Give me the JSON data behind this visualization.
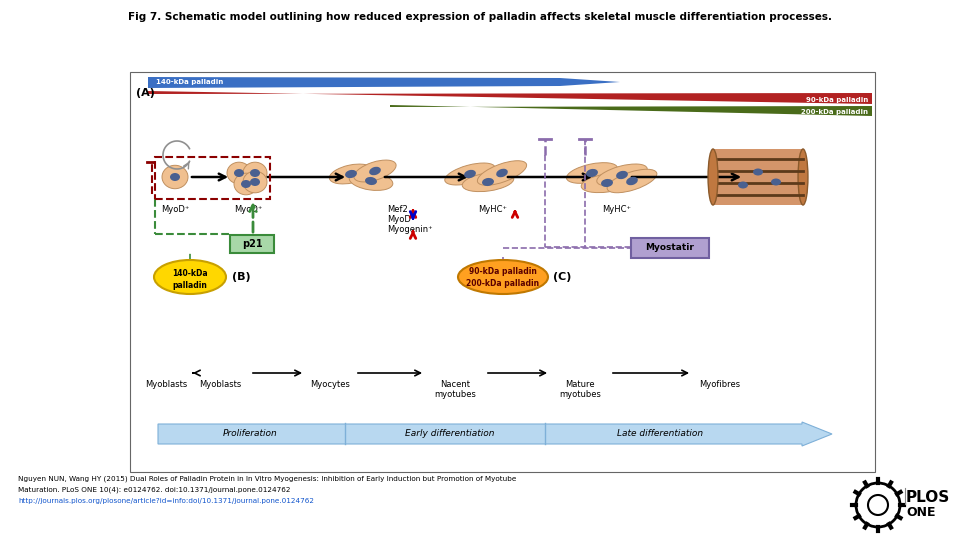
{
  "title": "Fig 7. Schematic model outlining how reduced expression of palladin affects skeletal muscle differentiation processes.",
  "bg_color": "#ffffff",
  "blue_tri_color": "#3A6FC4",
  "red_tri_color": "#B22222",
  "green_tri_color": "#4A6B1A",
  "label_A": "(A)",
  "label_B": "(B)",
  "label_C": "(C)",
  "label_140kDa": "140-kDa palladin",
  "label_90kDa": "90-kDa palladin",
  "label_200kDa": "200-kDa palladin",
  "cell_color": "#F0C090",
  "nucleus_color": "#4A6090",
  "dashed_red": "#8B0000",
  "dashed_purple": "#8B6CAC",
  "dashed_green": "#3A8B3A",
  "p21_color": "#A8D8A8",
  "p21_edge": "#3A8B3A",
  "myostatin_color": "#B0A0D0",
  "myostatin_edge": "#7060A0",
  "yellow_ellipse": "#FFD700",
  "yellow_ellipse_edge": "#C8A000",
  "orange_ellipse": "#FFA020",
  "orange_ellipse_edge": "#C07800",
  "citation_line1": "Nguyen NUN, Wang HY (2015) Dual Roles of Palladin Protein in In Vitro Myogenesis: Inhibition of Early Induction but Promotion of Myotube",
  "citation_line2": "Maturation. PLoS ONE 10(4): e0124762. doi:10.1371/journal.pone.0124762",
  "citation_url": "http://journals.plos.org/plosone/article?id=info:doi/10.1371/journal.pone.0124762"
}
